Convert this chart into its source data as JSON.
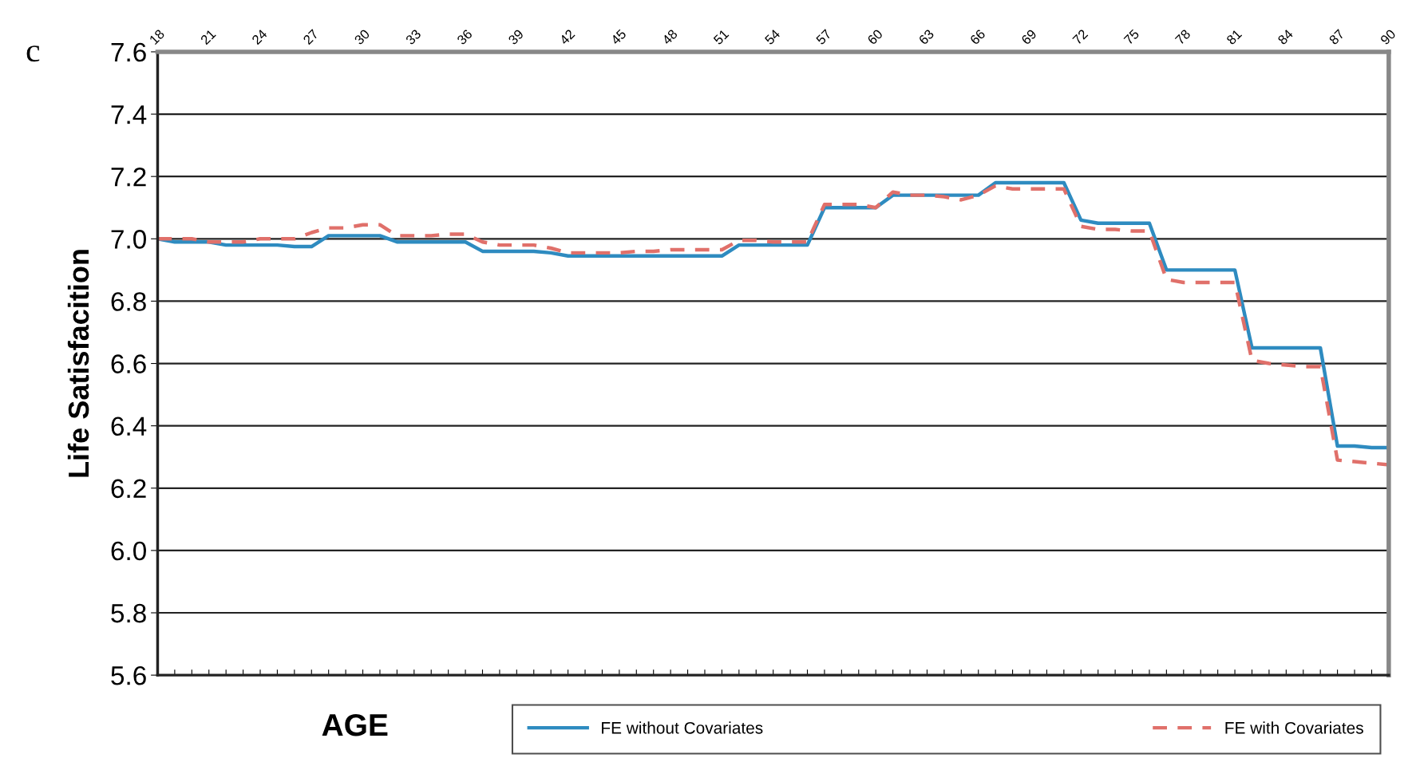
{
  "chart_data": {
    "type": "line",
    "xlabel": "AGE",
    "ylabel": "Life Satisfacition",
    "annotations": [
      "c"
    ],
    "x": [
      18,
      19,
      20,
      21,
      22,
      23,
      24,
      25,
      26,
      27,
      28,
      29,
      30,
      31,
      32,
      33,
      34,
      35,
      36,
      37,
      38,
      39,
      40,
      41,
      42,
      43,
      44,
      45,
      46,
      47,
      48,
      49,
      50,
      51,
      52,
      53,
      54,
      55,
      56,
      57,
      58,
      59,
      60,
      61,
      62,
      63,
      64,
      65,
      66,
      67,
      68,
      69,
      70,
      71,
      72,
      73,
      74,
      75,
      76,
      77,
      78,
      79,
      80,
      81,
      82,
      83,
      84,
      85,
      86,
      87,
      88,
      89,
      90
    ],
    "series": [
      {
        "name": "FE without Covariates",
        "color": "#2e8bc0",
        "line_style": "solid",
        "values": [
          7.0,
          6.99,
          6.99,
          6.99,
          6.98,
          6.98,
          6.98,
          6.98,
          6.975,
          6.975,
          7.01,
          7.01,
          7.01,
          7.01,
          6.99,
          6.99,
          6.99,
          6.99,
          6.99,
          6.96,
          6.96,
          6.96,
          6.96,
          6.955,
          6.945,
          6.945,
          6.945,
          6.945,
          6.945,
          6.945,
          6.945,
          6.945,
          6.945,
          6.945,
          6.98,
          6.98,
          6.98,
          6.98,
          6.98,
          7.1,
          7.1,
          7.1,
          7.1,
          7.14,
          7.14,
          7.14,
          7.14,
          7.14,
          7.14,
          7.18,
          7.18,
          7.18,
          7.18,
          7.18,
          7.06,
          7.05,
          7.05,
          7.05,
          7.05,
          6.9,
          6.9,
          6.9,
          6.9,
          6.9,
          6.65,
          6.65,
          6.65,
          6.65,
          6.65,
          6.335,
          6.335,
          6.33,
          6.33
        ]
      },
      {
        "name": "FE with Covariates",
        "color": "#e0706a",
        "line_style": "dashed",
        "values": [
          7.0,
          7.0,
          7.0,
          6.99,
          6.99,
          6.99,
          7.0,
          7.0,
          7.0,
          7.02,
          7.035,
          7.035,
          7.045,
          7.045,
          7.01,
          7.01,
          7.01,
          7.015,
          7.015,
          6.99,
          6.98,
          6.98,
          6.98,
          6.97,
          6.955,
          6.955,
          6.955,
          6.955,
          6.96,
          6.96,
          6.965,
          6.965,
          6.965,
          6.965,
          6.995,
          6.995,
          6.99,
          6.99,
          6.99,
          7.11,
          7.11,
          7.11,
          7.1,
          7.15,
          7.14,
          7.14,
          7.135,
          7.125,
          7.14,
          7.17,
          7.16,
          7.16,
          7.16,
          7.16,
          7.04,
          7.03,
          7.03,
          7.025,
          7.025,
          6.87,
          6.86,
          6.86,
          6.86,
          6.86,
          6.61,
          6.6,
          6.595,
          6.59,
          6.59,
          6.29,
          6.285,
          6.28,
          6.275
        ]
      }
    ],
    "xlim": [
      18,
      90
    ],
    "xticks": [
      18,
      {
        "value": 19,
        "label": null
      },
      {
        "value": 20,
        "label": null
      },
      21,
      {
        "value": 22,
        "label": null
      },
      {
        "value": 23,
        "label": null
      },
      24,
      {
        "value": 25,
        "label": null
      },
      {
        "value": 26,
        "label": null
      },
      27,
      {
        "value": 28,
        "label": null
      },
      {
        "value": 29,
        "label": null
      },
      30,
      {
        "value": 31,
        "label": null
      },
      {
        "value": 32,
        "label": null
      },
      33,
      {
        "value": 34,
        "label": null
      },
      {
        "value": 35,
        "label": null
      },
      36,
      {
        "value": 37,
        "label": null
      },
      {
        "value": 38,
        "label": null
      },
      39,
      {
        "value": 40,
        "label": null
      },
      {
        "value": 41,
        "label": null
      },
      42,
      {
        "value": 43,
        "label": null
      },
      {
        "value": 44,
        "label": null
      },
      45,
      {
        "value": 46,
        "label": null
      },
      {
        "value": 47,
        "label": null
      },
      48,
      {
        "value": 49,
        "label": null
      },
      {
        "value": 50,
        "label": null
      },
      51,
      {
        "value": 52,
        "label": null
      },
      {
        "value": 53,
        "label": null
      },
      54,
      {
        "value": 55,
        "label": null
      },
      {
        "value": 56,
        "label": null
      },
      57,
      {
        "value": 58,
        "label": null
      },
      {
        "value": 59,
        "label": null
      },
      60,
      {
        "value": 61,
        "label": null
      },
      {
        "value": 62,
        "label": null
      },
      63,
      {
        "value": 64,
        "label": null
      },
      {
        "value": 65,
        "label": null
      },
      66,
      {
        "value": 67,
        "label": null
      },
      {
        "value": 68,
        "label": null
      },
      69,
      {
        "value": 70,
        "label": null
      },
      {
        "value": 71,
        "label": null
      },
      72,
      {
        "value": 73,
        "label": null
      },
      {
        "value": 74,
        "label": null
      },
      75,
      {
        "value": 76,
        "label": null
      },
      {
        "value": 77,
        "label": null
      },
      78,
      {
        "value": 79,
        "label": null
      },
      {
        "value": 80,
        "label": null
      },
      81,
      {
        "value": 82,
        "label": null
      },
      {
        "value": 83,
        "label": null
      },
      84,
      {
        "value": 85,
        "label": null
      },
      {
        "value": 86,
        "label": null
      },
      87,
      {
        "value": 88,
        "label": null
      },
      {
        "value": 89,
        "label": null
      },
      90
    ],
    "ylim": [
      5.6,
      7.6
    ],
    "yticks": [
      5.6,
      5.8,
      {
        "value": 6,
        "label": "6.0"
      },
      6.2,
      6.4,
      6.6,
      6.8,
      {
        "value": 7,
        "label": "7.0"
      },
      7.2,
      7.4,
      7.6
    ],
    "grid": "y",
    "legend": "bottom"
  }
}
